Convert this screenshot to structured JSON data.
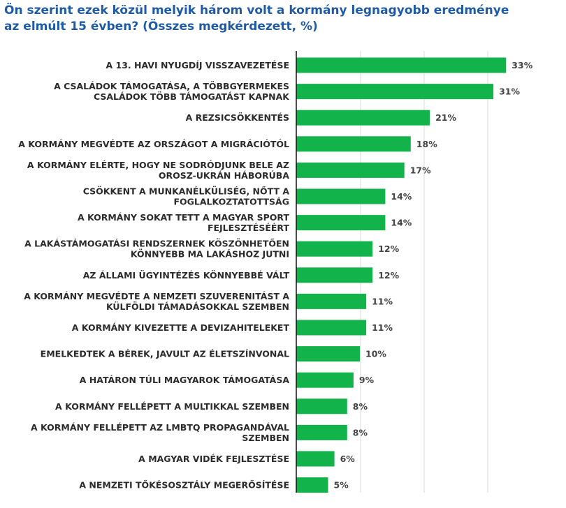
{
  "chart_data": {
    "type": "bar",
    "orientation": "horizontal",
    "title_lines": [
      "Ön szerint ezek közül melyik három volt a kormány legnagyobb eredménye",
      "az elmúlt 15 évben? (Összes megkérdezett, %)"
    ],
    "categories": [
      [
        "A 13. HAVI NYUGDÍJ VISSZAVEZETÉSE"
      ],
      [
        "A CSALÁDOK TÁMOGATÁSA, A TÖBBGYERMEKES",
        "CSALÁDOK TÖBB TÁMOGATÁST KAPNAK"
      ],
      [
        "A REZSICSÖKKENTÉS"
      ],
      [
        "A KORMÁNY MEGVÉDTE AZ ORSZÁGOT A MIGRÁCIÓTÓL"
      ],
      [
        "A KORMÁNY ELÉRTE, HOGY NE SODRÓDJUNK BELE AZ",
        "OROSZ-UKRÁN HÁBORÚBA"
      ],
      [
        "CSÖKKENT A MUNKANÉLKÜLISÉG, NŐTT A",
        "FOGLALKOZTATOTTSÁG"
      ],
      [
        "A KORMÁNY SOKAT TETT A MAGYAR SPORT",
        "FEJLESZTÉSÉÉRT"
      ],
      [
        "A LAKÁSTÁMOGATÁSI RENDSZERNEK KÖSZÖNHETŐEN",
        "KÖNNYEBB MA LAKÁSHOZ JUTNI"
      ],
      [
        "AZ ÁLLAMI ÜGYINTÉZÉS KÖNNYEBBÉ VÁLT"
      ],
      [
        "A KORMÁNY MEGVÉDTE A NEMZETI SZUVERENITÁST A",
        "KÜLFÖLDI TÁMADÁSOKKAL SZEMBEN"
      ],
      [
        "A KORMÁNY KIVEZETTE A DEVIZAHITELEKET"
      ],
      [
        "EMELKEDTEK A BÉREK, JAVULT AZ ÉLETSZÍNVONAL"
      ],
      [
        "A HATÁRON TÚLI MAGYAROK TÁMOGATÁSA"
      ],
      [
        "A KORMÁNY FELLÉPETT A MULTIKKAL SZEMBEN"
      ],
      [
        "A KORMÁNY FELLÉPETT AZ LMBTQ PROPAGANDÁVAL",
        "SZEMBEN"
      ],
      [
        "A MAGYAR VIDÉK FEJLESZTÉSE"
      ],
      [
        "A NEMZETI TŐKÉSOSZTÁLY MEGERŐSÍTÉSE"
      ]
    ],
    "values": [
      33,
      31,
      21,
      18,
      17,
      14,
      14,
      12,
      12,
      11,
      11,
      10,
      9,
      8,
      8,
      6,
      5
    ],
    "value_labels": [
      "33%",
      "31%",
      "21%",
      "18%",
      "17%",
      "14%",
      "14%",
      "12%",
      "12%",
      "11%",
      "11%",
      "10%",
      "9%",
      "8%",
      "8%",
      "6%",
      "5%"
    ],
    "xlim": [
      0,
      40
    ],
    "grid": true,
    "bar_color": "#12b34a",
    "title_color": "#1f5aa6"
  }
}
